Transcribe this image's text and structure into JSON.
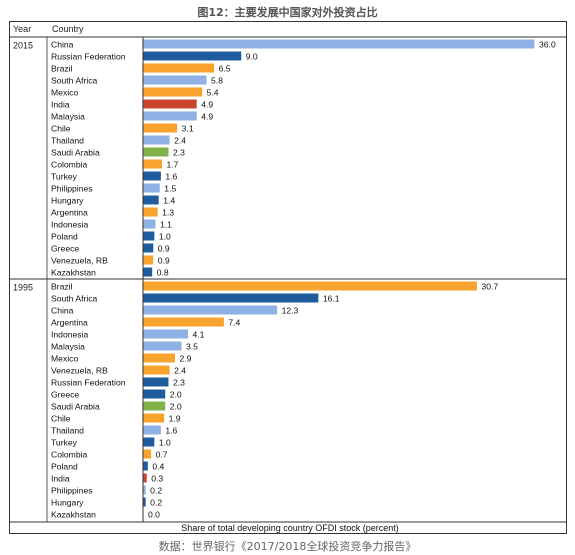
{
  "figure_title": "图12：主要发展中国家对外投资占比",
  "source_note": "数据：世界银行《2017/2018全球投资竞争力报告》",
  "header": {
    "year_label": "Year",
    "country_label": "Country"
  },
  "colors": {
    "light_blue": "#8fb1e3",
    "dark_blue": "#1f5c9e",
    "orange": "#f7a32d",
    "red": "#c8472a",
    "green": "#7fb34a"
  },
  "chart_data": {
    "type": "bar",
    "orientation": "horizontal",
    "xlabel": "Share of total developing country OFDI stock (percent)",
    "xlim": [
      0,
      36
    ],
    "grid": false,
    "panels": [
      {
        "year": "2015",
        "categories": [
          "China",
          "Russian Federation",
          "Brazil",
          "South Africa",
          "Mexico",
          "India",
          "Malaysia",
          "Chile",
          "Thailand",
          "Saudi Arabia",
          "Colombia",
          "Turkey",
          "Philippines",
          "Hungary",
          "Argentina",
          "Indonesia",
          "Poland",
          "Greece",
          "Venezuela, RB",
          "Kazakhstan"
        ],
        "values": [
          36.0,
          9.0,
          6.5,
          5.8,
          5.4,
          4.9,
          4.9,
          3.1,
          2.4,
          2.3,
          1.7,
          1.6,
          1.5,
          1.4,
          1.3,
          1.1,
          1.0,
          0.9,
          0.9,
          0.8
        ],
        "value_labels": [
          "36.0",
          "9.0",
          "6.5",
          "5.8",
          "5.4",
          "4.9",
          "4.9",
          "3.1",
          "2.4",
          "2.3",
          "1.7",
          "1.6",
          "1.5",
          "1.4",
          "1.3",
          "1.1",
          "1.0",
          "0.9",
          "0.9",
          "0.8"
        ],
        "colors": [
          "light_blue",
          "dark_blue",
          "orange",
          "light_blue",
          "orange",
          "red",
          "light_blue",
          "orange",
          "light_blue",
          "green",
          "orange",
          "dark_blue",
          "light_blue",
          "dark_blue",
          "orange",
          "light_blue",
          "dark_blue",
          "dark_blue",
          "orange",
          "dark_blue"
        ]
      },
      {
        "year": "1995",
        "categories": [
          "Brazil",
          "South Africa",
          "China",
          "Argentina",
          "Indonesia",
          "Malaysia",
          "Mexico",
          "Venezuela, RB",
          "Russian Federation",
          "Greece",
          "Saudi Arabia",
          "Chile",
          "Thailand",
          "Turkey",
          "Colombia",
          "Poland",
          "India",
          "Philippines",
          "Hungary",
          "Kazakhstan"
        ],
        "values": [
          30.7,
          16.1,
          12.3,
          7.4,
          4.1,
          3.5,
          2.9,
          2.4,
          2.3,
          2.0,
          2.0,
          1.9,
          1.6,
          1.0,
          0.7,
          0.4,
          0.3,
          0.2,
          0.2,
          0.0
        ],
        "value_labels": [
          "30.7",
          "16.1",
          "12.3",
          "7.4",
          "4.1",
          "3.5",
          "2.9",
          "2.4",
          "2.3",
          "2.0",
          "2.0",
          "1.9",
          "1.6",
          "1.0",
          "0.7",
          "0.4",
          "0.3",
          "0.2",
          "0.2",
          "0.0"
        ],
        "colors": [
          "orange",
          "dark_blue",
          "light_blue",
          "orange",
          "light_blue",
          "light_blue",
          "orange",
          "orange",
          "dark_blue",
          "dark_blue",
          "green",
          "orange",
          "light_blue",
          "dark_blue",
          "orange",
          "dark_blue",
          "red",
          "light_blue",
          "dark_blue",
          "dark_blue"
        ]
      }
    ]
  }
}
